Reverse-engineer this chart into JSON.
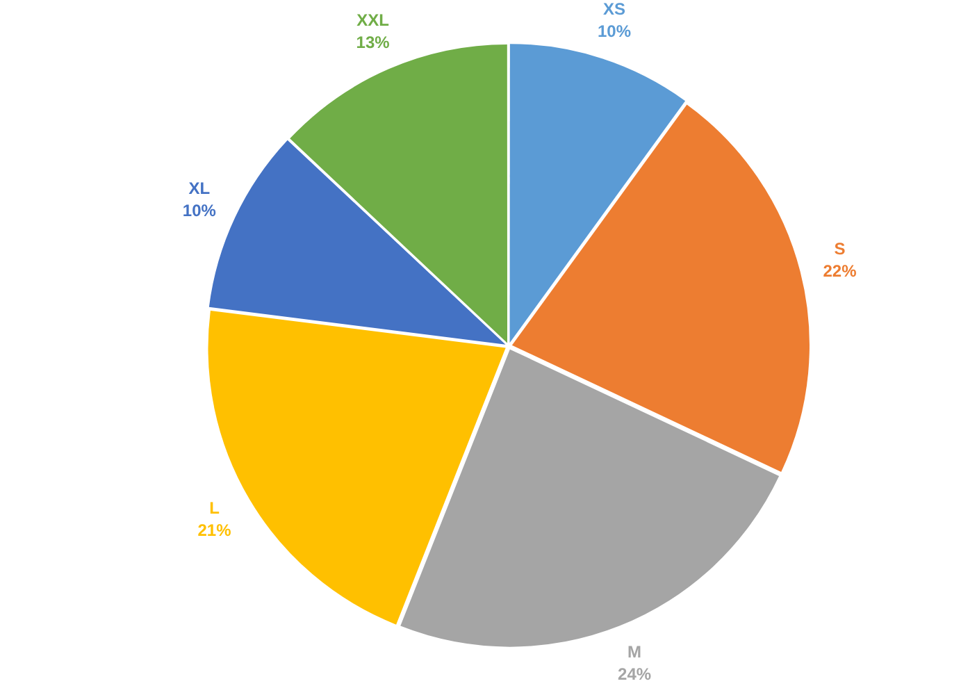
{
  "chart_data": {
    "type": "pie",
    "categories": [
      "XS",
      "S",
      "M",
      "L",
      "XL",
      "XXL"
    ],
    "values": [
      10,
      22,
      24,
      21,
      10,
      13
    ],
    "value_labels": [
      "10%",
      "22%",
      "24%",
      "21%",
      "10%",
      "13%"
    ],
    "colors": [
      "#5b9bd5",
      "#ed7d31",
      "#a5a5a5",
      "#ffc000",
      "#4472c4",
      "#70ad47"
    ],
    "legend": false
  }
}
